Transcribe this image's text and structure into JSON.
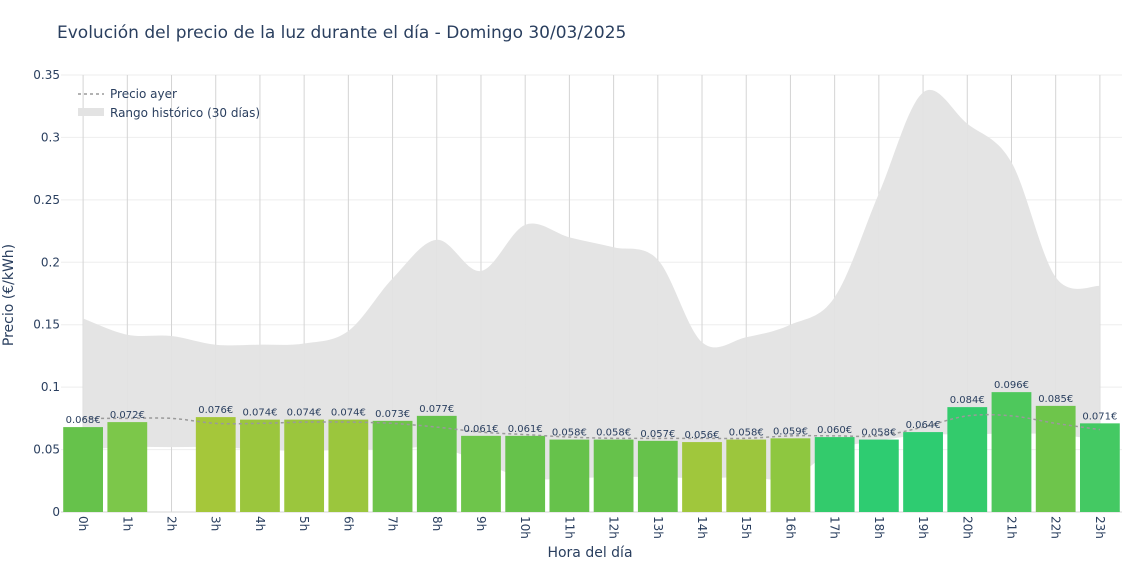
{
  "chart_data": {
    "type": "bar",
    "title": "Evolución del precio de la luz durante el día - Domingo 30/03/2025",
    "xlabel": "Hora del día",
    "ylabel": "Precio (€/kWh)",
    "ylim": [
      0,
      0.35
    ],
    "yticks": [
      "0",
      "0.05",
      "0.1",
      "0.15",
      "0.2",
      "0.25",
      "0.3",
      "0.35"
    ],
    "categories": [
      "0h",
      "1h",
      "2h",
      "3h",
      "4h",
      "5h",
      "6h",
      "7h",
      "8h",
      "9h",
      "10h",
      "11h",
      "12h",
      "13h",
      "14h",
      "15h",
      "16h",
      "17h",
      "18h",
      "19h",
      "20h",
      "21h",
      "22h",
      "23h"
    ],
    "series": [
      {
        "name": "",
        "values": [
          0.068,
          0.072,
          null,
          0.076,
          0.074,
          0.074,
          0.074,
          0.073,
          0.077,
          0.061,
          0.061,
          0.058,
          0.058,
          0.057,
          0.056,
          0.058,
          0.059,
          0.06,
          0.058,
          0.064,
          0.084,
          0.096,
          0.085,
          0.071
        ],
        "labels": [
          "0.068€",
          "0.072€",
          "",
          "0.076€",
          "0.074€",
          "0.074€",
          "0.074€",
          "0.073€",
          "0.077€",
          "0.061€",
          "0.061€",
          "0.058€",
          "0.058€",
          "0.057€",
          "0.056€",
          "0.058€",
          "0.059€",
          "0.060€",
          "0.058€",
          "0.064€",
          "0.084€",
          "0.096€",
          "0.085€",
          "0.071€"
        ],
        "colors": [
          "#66c24b",
          "#7cc74a",
          "",
          "#a5c73a",
          "#9bc63d",
          "#9bc63d",
          "#9bc63d",
          "#6fc44b",
          "#66c24b",
          "#6ec54b",
          "#66c24b",
          "#66c24b",
          "#66c24b",
          "#66c24b",
          "#a0c73c",
          "#9cc63d",
          "#8ec740",
          "#33cb6c",
          "#2ecc71",
          "#2ecc71",
          "#33cb6c",
          "#4ec85c",
          "#6ec54b",
          "#44c963"
        ]
      },
      {
        "name": "Precio ayer",
        "type": "line",
        "values": [
          0.075,
          0.075,
          0.075,
          0.071,
          0.071,
          0.072,
          0.072,
          0.071,
          0.068,
          0.064,
          0.062,
          0.06,
          0.059,
          0.059,
          0.059,
          0.059,
          0.061,
          0.061,
          0.061,
          0.068,
          0.077,
          0.077,
          0.071,
          0.066
        ]
      },
      {
        "name": "Rango histórico (30 días)",
        "type": "area",
        "upper": [
          0.155,
          0.142,
          0.141,
          0.134,
          0.134,
          0.135,
          0.145,
          0.187,
          0.218,
          0.193,
          0.23,
          0.22,
          0.212,
          0.202,
          0.136,
          0.14,
          0.15,
          0.172,
          0.255,
          0.336,
          0.311,
          0.28,
          0.188,
          0.181
        ],
        "lower": [
          0.05,
          0.052,
          0.052,
          0.052,
          0.05,
          0.049,
          0.05,
          0.05,
          0.052,
          0.04,
          0.027,
          0.027,
          0.028,
          0.028,
          0.027,
          0.028,
          0.027,
          0.05,
          0.057,
          0.062,
          0.062,
          0.063,
          0.062,
          0.058
        ]
      }
    ],
    "legend": {
      "position": "top-left"
    },
    "grid": true,
    "colors": {
      "range_fill": "#e3e3e3",
      "line": "#9a9a9a",
      "text": "#2a3f5f",
      "grid": "#eeeeee"
    }
  }
}
